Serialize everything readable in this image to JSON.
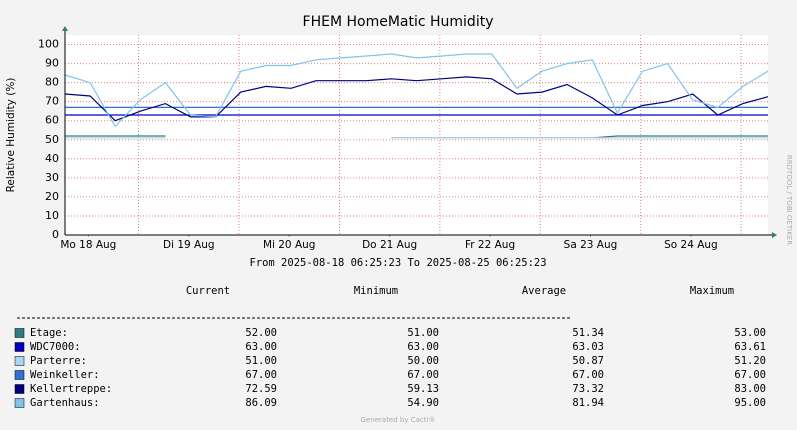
{
  "chart_data": {
    "type": "line",
    "title": "FHEM HomeMatic Humidity",
    "y_label": "Relative Humidity (%)",
    "period_label": "From 2025-08-18 06:25:23 To 2025-08-25 06:25:23",
    "watermark": "RRDTOOL / TOBI OETIKER",
    "footer": "Generated by Cacti®",
    "x": [
      0,
      6,
      12,
      18,
      24,
      30,
      36,
      42,
      48,
      54,
      60,
      66,
      72,
      78,
      84,
      90,
      96,
      102,
      108,
      114,
      120,
      126,
      132,
      138,
      144,
      150,
      156,
      162,
      168
    ],
    "xlim": [
      0,
      168
    ],
    "xticks": [
      {
        "value": 5.58,
        "label": "Mo 18 Aug"
      },
      {
        "value": 29.58,
        "label": "Di 19 Aug"
      },
      {
        "value": 53.58,
        "label": "Mi 20 Aug"
      },
      {
        "value": 77.58,
        "label": "Do 21 Aug"
      },
      {
        "value": 101.58,
        "label": "Fr 22 Aug"
      },
      {
        "value": 125.58,
        "label": "Sa 23 Aug"
      },
      {
        "value": 149.58,
        "label": "So 24 Aug"
      }
    ],
    "ylim": [
      0,
      105
    ],
    "yticks": [
      0,
      10,
      20,
      30,
      40,
      50,
      60,
      70,
      80,
      90,
      100
    ],
    "grid": true,
    "stats_columns": [
      "Current",
      "Minimum",
      "Average",
      "Maximum"
    ],
    "series": [
      {
        "name": "Etage:",
        "color": "#2e8080",
        "stats": [
          "52.00",
          "51.00",
          "51.34",
          "53.00"
        ],
        "values": [
          52,
          52,
          52,
          52,
          52,
          null,
          null,
          null,
          null,
          null,
          null,
          null,
          null,
          51,
          51,
          51,
          51,
          51,
          51,
          51,
          51,
          51,
          52,
          52,
          52,
          52,
          52,
          52,
          52
        ]
      },
      {
        "name": "WDC7000:",
        "color": "#0000c0",
        "stats": [
          "63.00",
          "63.00",
          "63.03",
          "63.61"
        ],
        "values": [
          63,
          63,
          63,
          63,
          63,
          63,
          63,
          63,
          63,
          63,
          63,
          63,
          63,
          63,
          63,
          63,
          63,
          63,
          63,
          63,
          63,
          63,
          63,
          63,
          63,
          63,
          63,
          63,
          63
        ]
      },
      {
        "name": "Parterre:",
        "color": "#a8d8f0",
        "stats": [
          "51.00",
          "50.00",
          "50.87",
          "51.20"
        ],
        "values": [
          51,
          51,
          51,
          51,
          51,
          null,
          null,
          null,
          null,
          null,
          null,
          null,
          null,
          51,
          51,
          51,
          51,
          51,
          51,
          51,
          51,
          51,
          51,
          51,
          51,
          51,
          51,
          51,
          51
        ]
      },
      {
        "name": "Weinkeller:",
        "color": "#2f6fd8",
        "stats": [
          "67.00",
          "67.00",
          "67.00",
          "67.00"
        ],
        "values": [
          67,
          67,
          67,
          67,
          67,
          67,
          67,
          67,
          67,
          67,
          67,
          67,
          67,
          67,
          67,
          67,
          67,
          67,
          67,
          67,
          67,
          67,
          67,
          67,
          67,
          67,
          67,
          67,
          67
        ]
      },
      {
        "name": "Kellertreppe:",
        "color": "#000080",
        "stats": [
          "72.59",
          "59.13",
          "73.32",
          "83.00"
        ],
        "values": [
          74,
          73,
          60,
          65,
          69,
          62,
          62,
          75,
          78,
          77,
          81,
          81,
          81,
          82,
          81,
          82,
          83,
          82,
          74,
          75,
          79,
          72,
          63,
          68,
          70,
          74,
          63,
          69,
          72.6
        ]
      },
      {
        "name": "Gartenhaus:",
        "color": "#80c4ee",
        "stats": [
          "86.09",
          "54.90",
          "81.94",
          "95.00"
        ],
        "values": [
          84,
          80,
          57,
          71,
          80,
          63,
          62,
          86,
          89,
          89,
          92,
          93,
          94,
          95,
          93,
          94,
          95,
          95,
          77,
          86,
          90,
          92,
          64,
          86,
          90,
          71,
          67,
          78,
          86
        ]
      }
    ]
  }
}
